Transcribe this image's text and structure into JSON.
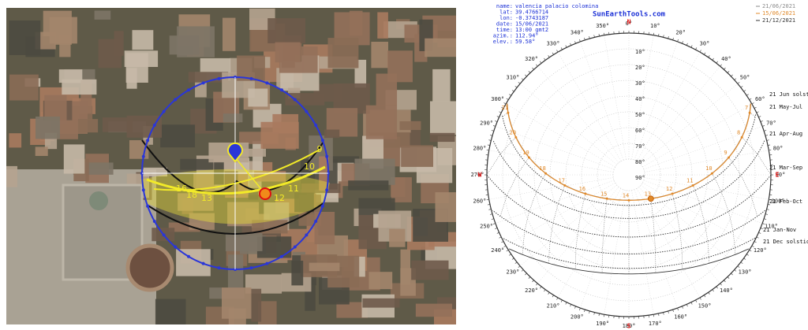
{
  "map": {
    "hour_labels": [
      "9",
      "10",
      "11",
      "12",
      "13",
      "16",
      "18"
    ]
  },
  "sunpath": {
    "site": "SunEarthTools.com",
    "info": [
      {
        "label": "name:",
        "value": "valencia palacio colomina"
      },
      {
        "label": "lat:",
        "value": "39.4766714"
      },
      {
        "label": "lon:",
        "value": "-0.3743187"
      },
      {
        "label": "date:",
        "value": "15/06/2021"
      },
      {
        "label": "time:",
        "value": "13:00 gmt2"
      },
      {
        "label": "azim.:",
        "value": "112.94°"
      },
      {
        "label": "elev.:",
        "value": "59.58°"
      }
    ],
    "legend": [
      {
        "date": "21/06/2021",
        "color": "#8a8a8a"
      },
      {
        "date": "15/06/2021",
        "color": "#e0892a"
      },
      {
        "date": "21/12/2021",
        "color": "#333333"
      }
    ],
    "cardinals": [
      "N",
      "E",
      "S",
      "W"
    ],
    "azimuth_labels": [
      "0°",
      "10°",
      "20°",
      "30°",
      "40°",
      "50°",
      "60°",
      "70°",
      "80°",
      "90°",
      "100°",
      "110°",
      "120°",
      "130°",
      "140°",
      "150°",
      "160°",
      "170°",
      "180°",
      "190°",
      "200°",
      "210°",
      "220°",
      "230°",
      "240°",
      "250°",
      "260°",
      "270°",
      "280°",
      "290°",
      "300°",
      "310°",
      "320°",
      "330°",
      "340°",
      "350°"
    ],
    "elevation_labels": [
      "10°",
      "20°",
      "30°",
      "40°",
      "50°",
      "60°",
      "70°",
      "80°",
      "90°"
    ],
    "date_labels": [
      "21 Jun  solstice",
      "21 May-Jul",
      "21 Apr-Aug",
      "21 Mar-Sep",
      "21 Feb-Oct",
      "21 Jan-Nov",
      "21 Dec  solstice"
    ],
    "hour_labels": [
      "6",
      "7",
      "8",
      "9",
      "10",
      "11",
      "12",
      "13",
      "14",
      "15",
      "16",
      "17",
      "18",
      "19",
      "20",
      "21"
    ]
  }
}
